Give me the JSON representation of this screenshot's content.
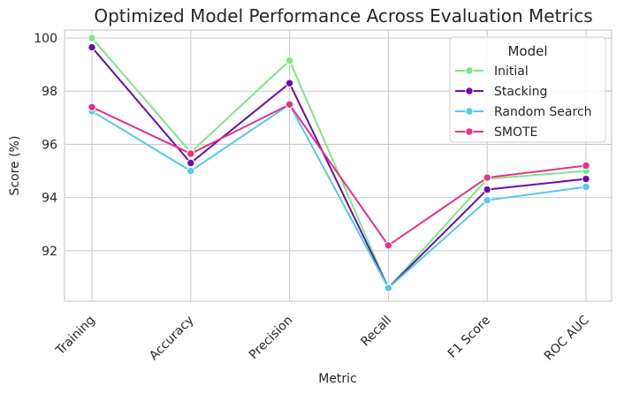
{
  "chart_data": {
    "type": "line",
    "title": "Optimized Model Performance Across Evaluation Metrics",
    "xlabel": "Metric",
    "ylabel": "Score (%)",
    "categories": [
      "Training",
      "Accuracy",
      "Precision",
      "Recall",
      "F1 Score",
      "ROC AUC"
    ],
    "ylim": [
      90.1,
      100.3
    ],
    "yticks": [
      92,
      94,
      96,
      98,
      100
    ],
    "grid": true,
    "legend": {
      "title": "Model",
      "placement": "top-right"
    },
    "series": [
      {
        "name": "Initial",
        "color": "#7ee787",
        "values": [
          100.0,
          95.7,
          99.15,
          90.6,
          94.7,
          95.0
        ]
      },
      {
        "name": "Stacking",
        "color": "#6a0dad",
        "values": [
          99.65,
          95.3,
          98.3,
          90.6,
          94.3,
          94.7
        ]
      },
      {
        "name": "Random Search",
        "color": "#56c8ee",
        "values": [
          97.25,
          95.0,
          97.5,
          90.6,
          93.9,
          94.4
        ]
      },
      {
        "name": "SMOTE",
        "color": "#e8308a",
        "values": [
          97.4,
          95.65,
          97.5,
          92.2,
          94.75,
          95.2
        ]
      }
    ]
  }
}
